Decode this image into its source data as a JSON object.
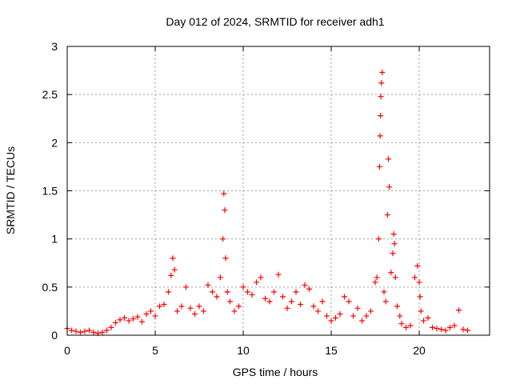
{
  "chart_data": {
    "type": "scatter",
    "title": "Day 012 of 2024, SRMTID for receiver adh1",
    "xlabel": "GPS time / hours",
    "ylabel": "SRMTID / TECUs",
    "xlim": [
      0,
      24
    ],
    "ylim": [
      0,
      3
    ],
    "x_ticks": [
      0,
      5,
      10,
      15,
      20
    ],
    "x_tick_labels": [
      "0",
      "5",
      "10",
      "15",
      "20"
    ],
    "y_ticks": [
      0,
      0.5,
      1,
      1.5,
      2,
      2.5,
      3
    ],
    "y_tick_labels": [
      "0",
      "0.5",
      "1",
      "1.5",
      "2",
      "2.5",
      "3"
    ],
    "grid": true,
    "marker": "+",
    "series": [
      {
        "name": "adh1",
        "color": "#ff0000",
        "x": [
          0.0,
          0.25,
          0.5,
          0.75,
          1.0,
          1.25,
          1.5,
          1.75,
          2.0,
          2.25,
          2.5,
          2.75,
          3.0,
          3.25,
          3.5,
          3.75,
          4.0,
          4.25,
          4.5,
          4.75,
          5.0,
          5.25,
          5.5,
          5.75,
          5.9,
          6.0,
          6.1,
          6.25,
          6.5,
          6.75,
          7.0,
          7.25,
          7.5,
          7.75,
          8.0,
          8.25,
          8.5,
          8.7,
          8.85,
          8.9,
          8.95,
          9.0,
          9.1,
          9.25,
          9.5,
          9.75,
          10.0,
          10.25,
          10.5,
          10.75,
          11.0,
          11.25,
          11.5,
          11.75,
          12.0,
          12.25,
          12.5,
          12.75,
          13.0,
          13.25,
          13.5,
          13.75,
          14.0,
          14.25,
          14.5,
          14.75,
          15.0,
          15.25,
          15.5,
          15.75,
          16.0,
          16.25,
          16.5,
          16.75,
          17.0,
          17.25,
          17.5,
          17.6,
          17.7,
          17.75,
          17.78,
          17.8,
          17.82,
          17.85,
          17.9,
          18.0,
          18.1,
          18.2,
          18.25,
          18.3,
          18.4,
          18.5,
          18.55,
          18.6,
          18.65,
          18.75,
          18.9,
          19.0,
          19.25,
          19.5,
          19.75,
          19.9,
          20.0,
          20.05,
          20.1,
          20.25,
          20.5,
          20.75,
          21.0,
          21.25,
          21.5,
          21.75,
          22.0,
          22.25,
          22.5,
          22.75
        ],
        "y": [
          0.07,
          0.05,
          0.04,
          0.03,
          0.04,
          0.05,
          0.03,
          0.02,
          0.03,
          0.05,
          0.08,
          0.13,
          0.16,
          0.18,
          0.15,
          0.17,
          0.19,
          0.14,
          0.22,
          0.25,
          0.2,
          0.3,
          0.32,
          0.45,
          0.62,
          0.8,
          0.68,
          0.25,
          0.3,
          0.5,
          0.28,
          0.22,
          0.3,
          0.25,
          0.52,
          0.45,
          0.4,
          0.6,
          1.0,
          1.47,
          1.3,
          0.8,
          0.45,
          0.35,
          0.25,
          0.3,
          0.5,
          0.45,
          0.42,
          0.55,
          0.6,
          0.38,
          0.35,
          0.45,
          0.63,
          0.4,
          0.28,
          0.35,
          0.45,
          0.32,
          0.52,
          0.48,
          0.3,
          0.25,
          0.35,
          0.2,
          0.15,
          0.18,
          0.22,
          0.4,
          0.35,
          0.2,
          0.28,
          0.15,
          0.2,
          0.25,
          0.55,
          0.6,
          1.0,
          1.75,
          2.07,
          2.28,
          2.48,
          2.62,
          2.73,
          0.45,
          0.35,
          1.25,
          1.83,
          1.54,
          0.65,
          0.85,
          1.05,
          0.95,
          0.6,
          0.3,
          0.2,
          0.12,
          0.08,
          0.1,
          0.6,
          0.72,
          0.55,
          0.4,
          0.25,
          0.15,
          0.18,
          0.08,
          0.07,
          0.06,
          0.05,
          0.08,
          0.1,
          0.26,
          0.06,
          0.05
        ]
      }
    ]
  }
}
